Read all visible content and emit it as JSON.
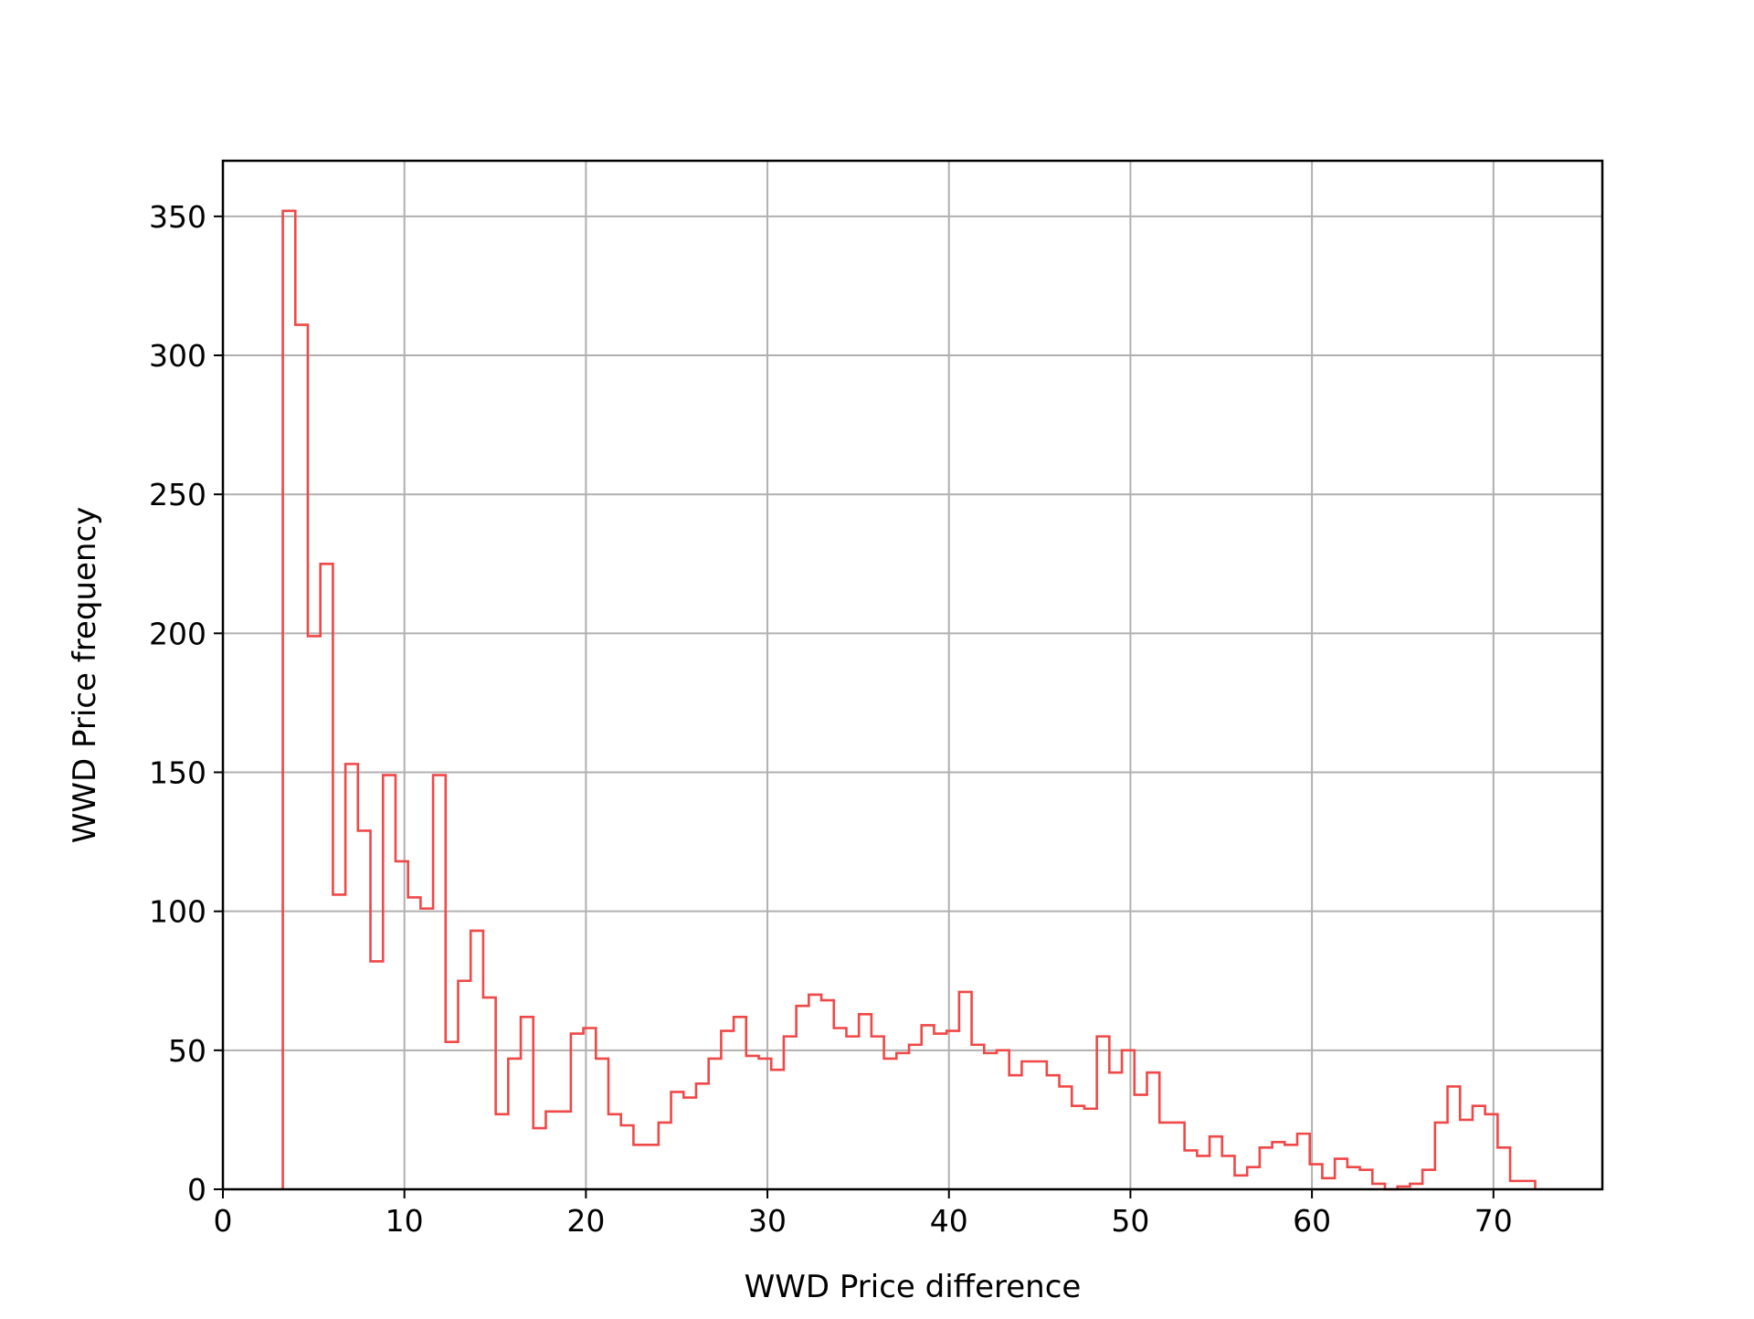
{
  "chart_data": {
    "type": "histogram",
    "histtype": "step",
    "title": "",
    "xlabel": "WWD Price difference",
    "ylabel": "WWD Price frequency",
    "xlim": [
      0,
      76
    ],
    "ylim": [
      0,
      370
    ],
    "xticks": [
      0,
      10,
      20,
      30,
      40,
      50,
      60,
      70
    ],
    "yticks": [
      0,
      50,
      100,
      150,
      200,
      250,
      300,
      350
    ],
    "xtick_labels": [
      "0",
      "10",
      "20",
      "30",
      "40",
      "50",
      "60",
      "70"
    ],
    "ytick_labels": [
      "0",
      "50",
      "100",
      "150",
      "200",
      "250",
      "300",
      "350"
    ],
    "grid": true,
    "line_color": "#f04747",
    "grid_color": "#b0b0b0",
    "bin_start": 3.3,
    "bin_width": 0.69,
    "counts": [
      352,
      311,
      199,
      225,
      106,
      153,
      129,
      82,
      149,
      118,
      105,
      101,
      149,
      53,
      75,
      93,
      69,
      27,
      47,
      62,
      22,
      28,
      28,
      56,
      58,
      47,
      27,
      23,
      16,
      16,
      24,
      35,
      33,
      38,
      47,
      57,
      62,
      48,
      47,
      43,
      55,
      66,
      70,
      68,
      58,
      55,
      63,
      55,
      47,
      49,
      52,
      59,
      56,
      57,
      71,
      52,
      49,
      50,
      41,
      46,
      46,
      41,
      37,
      30,
      29,
      55,
      42,
      50,
      34,
      42,
      24,
      24,
      14,
      12,
      19,
      12,
      5,
      8,
      15,
      17,
      16,
      20,
      9,
      4,
      11,
      8,
      7,
      2,
      0,
      1,
      2,
      7,
      24,
      37,
      25,
      30,
      27,
      15,
      3,
      3
    ]
  }
}
